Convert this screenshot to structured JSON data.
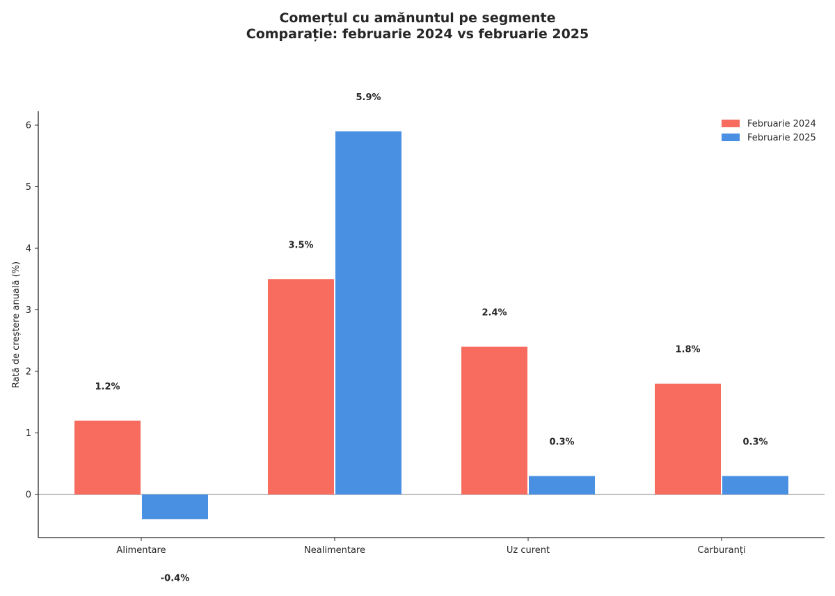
{
  "chart_data": {
    "type": "bar",
    "title": "Comerțul cu amănuntul pe segmente",
    "subtitle": "Comparație: februarie 2024 vs februarie 2025",
    "xlabel": "",
    "ylabel": "Rată de creștere anuală (%)",
    "categories": [
      "Alimentare",
      "Nealimentare",
      "Uz curent",
      "Carburanți"
    ],
    "series": [
      {
        "name": "Februarie 2024",
        "color": "#F76C5E",
        "values": [
          1.2,
          3.5,
          2.4,
          1.8
        ],
        "labels": [
          "1.2%",
          "3.5%",
          "2.4%",
          "1.8%"
        ]
      },
      {
        "name": "Februarie 2025",
        "color": "#4A90E2",
        "values": [
          -0.4,
          5.9,
          0.3,
          0.3
        ],
        "labels": [
          "-0.4%",
          "5.9%",
          "0.3%",
          "0.3%"
        ]
      }
    ],
    "yticks": [
      "0",
      "1",
      "2",
      "3",
      "4",
      "5",
      "6"
    ],
    "ylim": [
      -0.7,
      6.2
    ],
    "grid": false,
    "legend_position": "top-right",
    "zero_line": true
  }
}
